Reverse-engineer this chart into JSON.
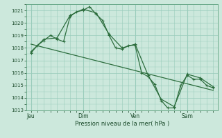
{
  "background_color": "#cce8dc",
  "grid_color": "#99ccbb",
  "line_color": "#2d6e3e",
  "xlabel": "Pression niveau de la mer( hPa )",
  "ylim": [
    1013,
    1021.5
  ],
  "yticks": [
    1013,
    1014,
    1015,
    1016,
    1017,
    1018,
    1019,
    1020,
    1021
  ],
  "xlim": [
    -4,
    172
  ],
  "day_labels": [
    "Jeu",
    "Dim",
    "Ven",
    "Sam"
  ],
  "day_positions": [
    0,
    48,
    96,
    144
  ],
  "series1_x": [
    0,
    6,
    12,
    18,
    24,
    30,
    36,
    42,
    48,
    54,
    60,
    66,
    72,
    78,
    84,
    90,
    96,
    102,
    108,
    114,
    120,
    126,
    132,
    138,
    144,
    150,
    156,
    162,
    168
  ],
  "series1_y": [
    1017.6,
    1018.2,
    1018.6,
    1019.0,
    1018.7,
    1018.5,
    1020.5,
    1020.9,
    1021.0,
    1021.3,
    1020.7,
    1020.2,
    1019.0,
    1018.0,
    1017.9,
    1018.2,
    1018.2,
    1016.0,
    1015.7,
    1015.1,
    1013.8,
    1013.2,
    1013.2,
    1015.0,
    1015.8,
    1015.5,
    1015.5,
    1015.0,
    1014.8
  ],
  "series2_x": [
    0,
    12,
    24,
    36,
    48,
    60,
    72,
    84,
    96,
    108,
    120,
    132,
    144,
    156,
    168
  ],
  "series2_y": [
    1017.7,
    1018.7,
    1018.8,
    1020.6,
    1021.1,
    1020.8,
    1019.1,
    1018.0,
    1018.3,
    1015.8,
    1013.9,
    1013.3,
    1015.9,
    1015.6,
    1014.9
  ],
  "trend_x": [
    0,
    168
  ],
  "trend_y": [
    1018.3,
    1014.6
  ]
}
